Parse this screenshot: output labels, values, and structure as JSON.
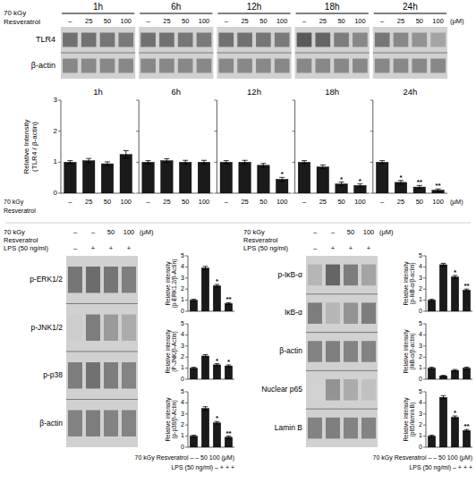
{
  "chart_data": [
    {
      "type": "blot",
      "row_labels": [
        "TLR4",
        "β-actin"
      ],
      "groups": [
        "1h",
        "6h",
        "12h",
        "18h",
        "24h"
      ],
      "conditions": [
        {
          "label": [
            "70 kGy",
            "Resveratrol"
          ],
          "lanes": [
            "–",
            "25",
            "50",
            "100"
          ],
          "unit": "(μM)"
        }
      ],
      "cells": [
        [
          [
            0.6,
            0.6,
            0.58,
            0.56
          ],
          [
            0.5,
            0.5,
            0.5,
            0.5
          ]
        ],
        [
          [
            0.6,
            0.6,
            0.58,
            0.56
          ],
          [
            0.5,
            0.5,
            0.5,
            0.5
          ]
        ],
        [
          [
            0.6,
            0.6,
            0.58,
            0.56
          ],
          [
            0.5,
            0.5,
            0.5,
            0.5
          ]
        ],
        [
          [
            0.7,
            0.65,
            0.55,
            0.5
          ],
          [
            0.5,
            0.5,
            0.5,
            0.5
          ]
        ],
        [
          [
            0.58,
            0.5,
            0.45,
            0.38
          ],
          [
            0.5,
            0.5,
            0.5,
            0.5
          ]
        ]
      ]
    },
    {
      "type": "bar",
      "title": "1h",
      "categories": [
        "–",
        "25",
        "50",
        "100"
      ],
      "values": [
        1.0,
        1.05,
        0.95,
        1.25
      ],
      "errors": [
        0.05,
        0.07,
        0.06,
        0.12
      ],
      "stars": [
        null,
        null,
        null,
        null
      ],
      "color": "#1a1a1a",
      "ylim": [
        0,
        3
      ],
      "yticks": [
        0,
        1,
        2,
        3
      ],
      "ylabel": "Relative Intensity\n(TLR4 / β-actin)",
      "annotations": [
        "70 kGy",
        "Resveratrol"
      ]
    },
    {
      "type": "bar",
      "title": "6h",
      "categories": [
        "–",
        "25",
        "50",
        "100"
      ],
      "values": [
        1.0,
        1.05,
        1.0,
        1.0
      ],
      "errors": [
        0.05,
        0.06,
        0.06,
        0.06
      ],
      "stars": [
        null,
        null,
        null,
        null
      ],
      "color": "#1a1a1a",
      "ylim": [
        0,
        3
      ],
      "yticks": [
        0,
        1,
        2,
        3
      ],
      "tick_labels": "x"
    },
    {
      "type": "bar",
      "title": "12h",
      "categories": [
        "–",
        "25",
        "50",
        "100"
      ],
      "values": [
        1.0,
        1.0,
        0.9,
        0.45
      ],
      "errors": [
        0.05,
        0.06,
        0.06,
        0.06
      ],
      "stars": [
        null,
        null,
        null,
        "*"
      ],
      "color": "#1a1a1a",
      "ylim": [
        0,
        3
      ],
      "yticks": [
        0,
        1,
        2,
        3
      ],
      "tick_labels": "x"
    },
    {
      "type": "bar",
      "title": "18h",
      "categories": [
        "–",
        "25",
        "50",
        "100"
      ],
      "values": [
        1.0,
        0.85,
        0.3,
        0.25
      ],
      "errors": [
        0.05,
        0.06,
        0.06,
        0.05
      ],
      "stars": [
        null,
        null,
        "*",
        "*"
      ],
      "color": "#1a1a1a",
      "ylim": [
        0,
        3
      ],
      "yticks": [
        0,
        1,
        2,
        3
      ],
      "tick_labels": "x"
    },
    {
      "type": "bar",
      "title": "24h",
      "categories": [
        "–",
        "25",
        "50",
        "100"
      ],
      "values": [
        1.0,
        0.35,
        0.2,
        0.1
      ],
      "errors": [
        0.05,
        0.06,
        0.05,
        0.04
      ],
      "stars": [
        null,
        "*",
        "**",
        "**"
      ],
      "color": "#1a1a1a",
      "ylim": [
        0,
        3
      ],
      "yticks": [
        0,
        1,
        2,
        3
      ],
      "tick_labels": "x",
      "annotations": [
        "(μM)"
      ]
    },
    {
      "type": "blot",
      "row_labels": [
        "p-ERK1/2",
        "p-JNK1/2",
        "p-p38",
        "β-actin"
      ],
      "conditions": [
        {
          "label": [
            "70 kGy",
            "Resveratrol"
          ],
          "lanes": [
            "–",
            "–",
            "50",
            "100"
          ],
          "unit": "(μM)"
        },
        {
          "label": [
            "LPS (50 ng/ml)"
          ],
          "lanes": [
            "–",
            "+",
            "+",
            "+"
          ]
        }
      ],
      "cells": [
        [
          0.58,
          0.62,
          0.58,
          0.54
        ],
        [
          0.2,
          0.55,
          0.42,
          0.35
        ],
        [
          0.55,
          0.6,
          0.55,
          0.52
        ],
        [
          0.52,
          0.55,
          0.52,
          0.52
        ]
      ]
    },
    {
      "type": "bar",
      "ylabel": "Relative intensity\n(p-ERK1.2/β-Actin)",
      "values": [
        1.0,
        3.9,
        2.3,
        0.7
      ],
      "errors": [
        0.08,
        0.15,
        0.12,
        0.08
      ],
      "stars": [
        null,
        null,
        "*",
        "**"
      ],
      "color": "#1a1a1a",
      "ylim": [
        0,
        5
      ],
      "yticks": [
        0,
        1,
        2,
        3,
        4,
        5
      ],
      "tick_labels": "y"
    },
    {
      "type": "bar",
      "ylabel": "Relative intensity\n(P-JNK/β-Actin)",
      "values": [
        1.0,
        2.1,
        1.3,
        1.2
      ],
      "errors": [
        0.08,
        0.12,
        0.1,
        0.09
      ],
      "stars": [
        null,
        null,
        "*",
        "*"
      ],
      "color": "#1a1a1a",
      "ylim": [
        0,
        5
      ],
      "yticks": [
        0,
        1,
        2,
        3,
        4,
        5
      ],
      "tick_labels": "y"
    },
    {
      "type": "bar",
      "ylabel": "Relative intensity\n(p-p38/β-Actin)",
      "values": [
        1.0,
        3.5,
        2.2,
        0.9
      ],
      "errors": [
        0.08,
        0.15,
        0.12,
        0.1
      ],
      "stars": [
        null,
        null,
        "*",
        "**"
      ],
      "color": "#1a1a1a",
      "ylim": [
        0,
        5
      ],
      "yticks": [
        0,
        1,
        2,
        3,
        4,
        5
      ],
      "tick_labels": "y",
      "annotations": [
        "70 kGy Resveratrol  –  –  50 100 (μM)",
        "LPS (50 ng/ml)  –  +  +  +"
      ]
    },
    {
      "type": "blot",
      "row_labels": [
        "p-IκB-α",
        "IκB-α",
        "β-actin",
        "Nuclear p65",
        "Lamin B"
      ],
      "conditions": [
        {
          "label": [
            "70 kGy",
            "Resveratrol"
          ],
          "lanes": [
            "–",
            "–",
            "50",
            "100"
          ],
          "unit": "(μM)"
        },
        {
          "label": [
            "LPS (50 ng/ml)"
          ],
          "lanes": [
            "–",
            "+",
            "+",
            "+"
          ]
        }
      ],
      "cells": [
        [
          0.3,
          0.65,
          0.55,
          0.38
        ],
        [
          0.55,
          0.3,
          0.45,
          0.55
        ],
        [
          0.52,
          0.54,
          0.52,
          0.52
        ],
        [
          0.18,
          0.45,
          0.35,
          0.25
        ],
        [
          0.52,
          0.54,
          0.52,
          0.52
        ]
      ]
    },
    {
      "type": "bar",
      "ylabel": "Relative intensity\n(p-IkB-α/β-actin)",
      "values": [
        1.0,
        4.2,
        3.1,
        1.9
      ],
      "errors": [
        0.08,
        0.12,
        0.13,
        0.1
      ],
      "stars": [
        null,
        null,
        "*",
        "**"
      ],
      "color": "#1a1a1a",
      "ylim": [
        0,
        5
      ],
      "yticks": [
        0,
        1,
        2,
        3,
        4,
        5
      ],
      "tick_labels": "y"
    },
    {
      "type": "bar",
      "ylabel": "Relative intensity\n(IkB-α/β-actin)",
      "values": [
        1.0,
        0.3,
        0.8,
        1.0
      ],
      "errors": [
        0.08,
        0.05,
        0.08,
        0.09
      ],
      "stars": [
        null,
        null,
        null,
        null
      ],
      "color": "#1a1a1a",
      "ylim": [
        0,
        5
      ],
      "yticks": [
        0,
        1,
        2,
        3,
        4,
        5
      ],
      "tick_labels": "y"
    },
    {
      "type": "bar",
      "ylabel": "Relative intensity\n(p65/lamin B)",
      "values": [
        1.0,
        4.5,
        2.7,
        1.5
      ],
      "errors": [
        0.08,
        0.15,
        0.12,
        0.1
      ],
      "stars": [
        null,
        null,
        "*",
        "**"
      ],
      "color": "#1a1a1a",
      "ylim": [
        0,
        5
      ],
      "yticks": [
        0,
        1,
        2,
        3,
        4,
        5
      ],
      "tick_labels": "y",
      "annotations": [
        "70 kGy Resveratrol  –  –  50 100 (μM)",
        "LPS (50 ng/ml)  –  +  +  +"
      ]
    }
  ]
}
